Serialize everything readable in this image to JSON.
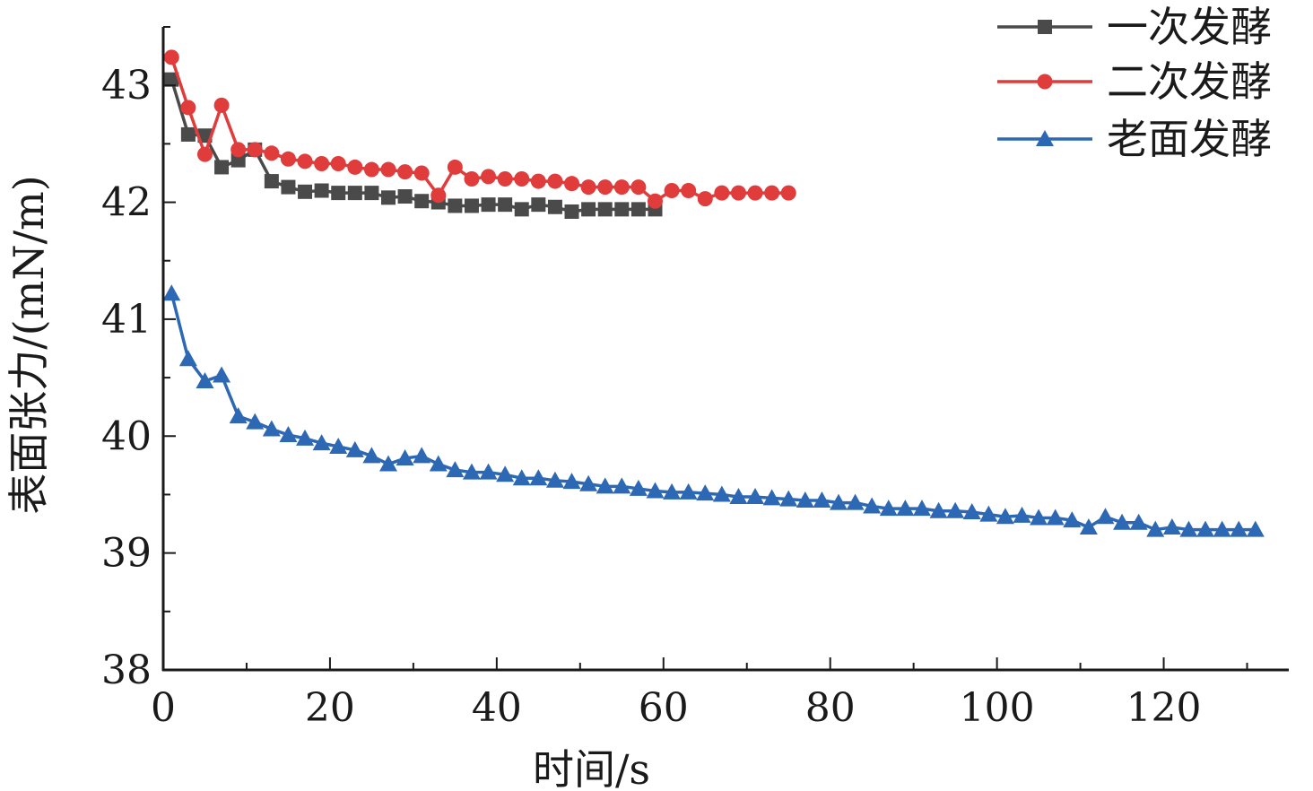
{
  "chart_data": {
    "type": "line",
    "xlabel": "时间/s",
    "ylabel": "表面张力/(mN/m)",
    "xlim": [
      0,
      135
    ],
    "ylim": [
      38,
      43.5
    ],
    "xticks": [
      0,
      20,
      40,
      60,
      80,
      100,
      120
    ],
    "yticks": [
      38,
      39,
      40,
      41,
      42,
      43
    ],
    "grid": false,
    "legend_position": "top-right",
    "series": [
      {
        "name": "一次发酵",
        "color": "#4a4a4a",
        "marker": "square",
        "x": [
          1,
          3,
          5,
          7,
          9,
          11,
          13,
          15,
          17,
          19,
          21,
          23,
          25,
          27,
          29,
          31,
          33,
          35,
          37,
          39,
          41,
          43,
          45,
          47,
          49,
          51,
          53,
          55,
          57,
          59
        ],
        "y": [
          43.05,
          42.58,
          42.57,
          42.3,
          42.36,
          42.45,
          42.18,
          42.13,
          42.09,
          42.1,
          42.08,
          42.08,
          42.08,
          42.04,
          42.05,
          42.01,
          42.0,
          41.97,
          41.97,
          41.98,
          41.98,
          41.94,
          41.98,
          41.96,
          41.92,
          41.94,
          41.94,
          41.94,
          41.94,
          41.94
        ]
      },
      {
        "name": "二次发酵",
        "color": "#e03c3c",
        "marker": "circle",
        "x": [
          1,
          3,
          5,
          7,
          9,
          11,
          13,
          15,
          17,
          19,
          21,
          23,
          25,
          27,
          29,
          31,
          33,
          35,
          37,
          39,
          41,
          43,
          45,
          47,
          49,
          51,
          53,
          55,
          57,
          59,
          61,
          63,
          65,
          67,
          69,
          71,
          73,
          75
        ],
        "y": [
          43.24,
          42.81,
          42.41,
          42.83,
          42.45,
          42.45,
          42.42,
          42.37,
          42.35,
          42.33,
          42.33,
          42.3,
          42.28,
          42.28,
          42.26,
          42.25,
          42.06,
          42.3,
          42.2,
          42.22,
          42.2,
          42.2,
          42.18,
          42.18,
          42.16,
          42.13,
          42.13,
          42.13,
          42.13,
          42.01,
          42.1,
          42.1,
          42.03,
          42.08,
          42.08,
          42.08,
          42.08,
          42.08
        ]
      },
      {
        "name": "老面发酵",
        "color": "#2d68b5",
        "marker": "triangle",
        "x": [
          1,
          3,
          5,
          7,
          9,
          11,
          13,
          15,
          17,
          19,
          21,
          23,
          25,
          27,
          29,
          31,
          33,
          35,
          37,
          39,
          41,
          43,
          45,
          47,
          49,
          51,
          53,
          55,
          57,
          59,
          61,
          63,
          65,
          67,
          69,
          71,
          73,
          75,
          77,
          79,
          81,
          83,
          85,
          87,
          89,
          91,
          93,
          95,
          97,
          99,
          101,
          103,
          105,
          107,
          109,
          111,
          113,
          115,
          117,
          119,
          121,
          123,
          125,
          127,
          129,
          131
        ],
        "y": [
          41.22,
          40.66,
          40.47,
          40.52,
          40.17,
          40.12,
          40.06,
          40.01,
          39.98,
          39.94,
          39.91,
          39.88,
          39.83,
          39.76,
          39.81,
          39.83,
          39.76,
          39.71,
          39.69,
          39.69,
          39.67,
          39.64,
          39.64,
          39.62,
          39.61,
          39.59,
          39.57,
          39.57,
          39.55,
          39.53,
          39.52,
          39.52,
          39.51,
          39.5,
          39.48,
          39.48,
          39.47,
          39.46,
          39.45,
          39.45,
          39.43,
          39.43,
          39.4,
          39.38,
          39.38,
          39.38,
          39.36,
          39.36,
          39.35,
          39.33,
          39.31,
          39.32,
          39.3,
          39.3,
          39.28,
          39.22,
          39.31,
          39.26,
          39.26,
          39.2,
          39.22,
          39.2,
          39.2,
          39.2,
          39.2,
          39.2
        ]
      }
    ]
  }
}
